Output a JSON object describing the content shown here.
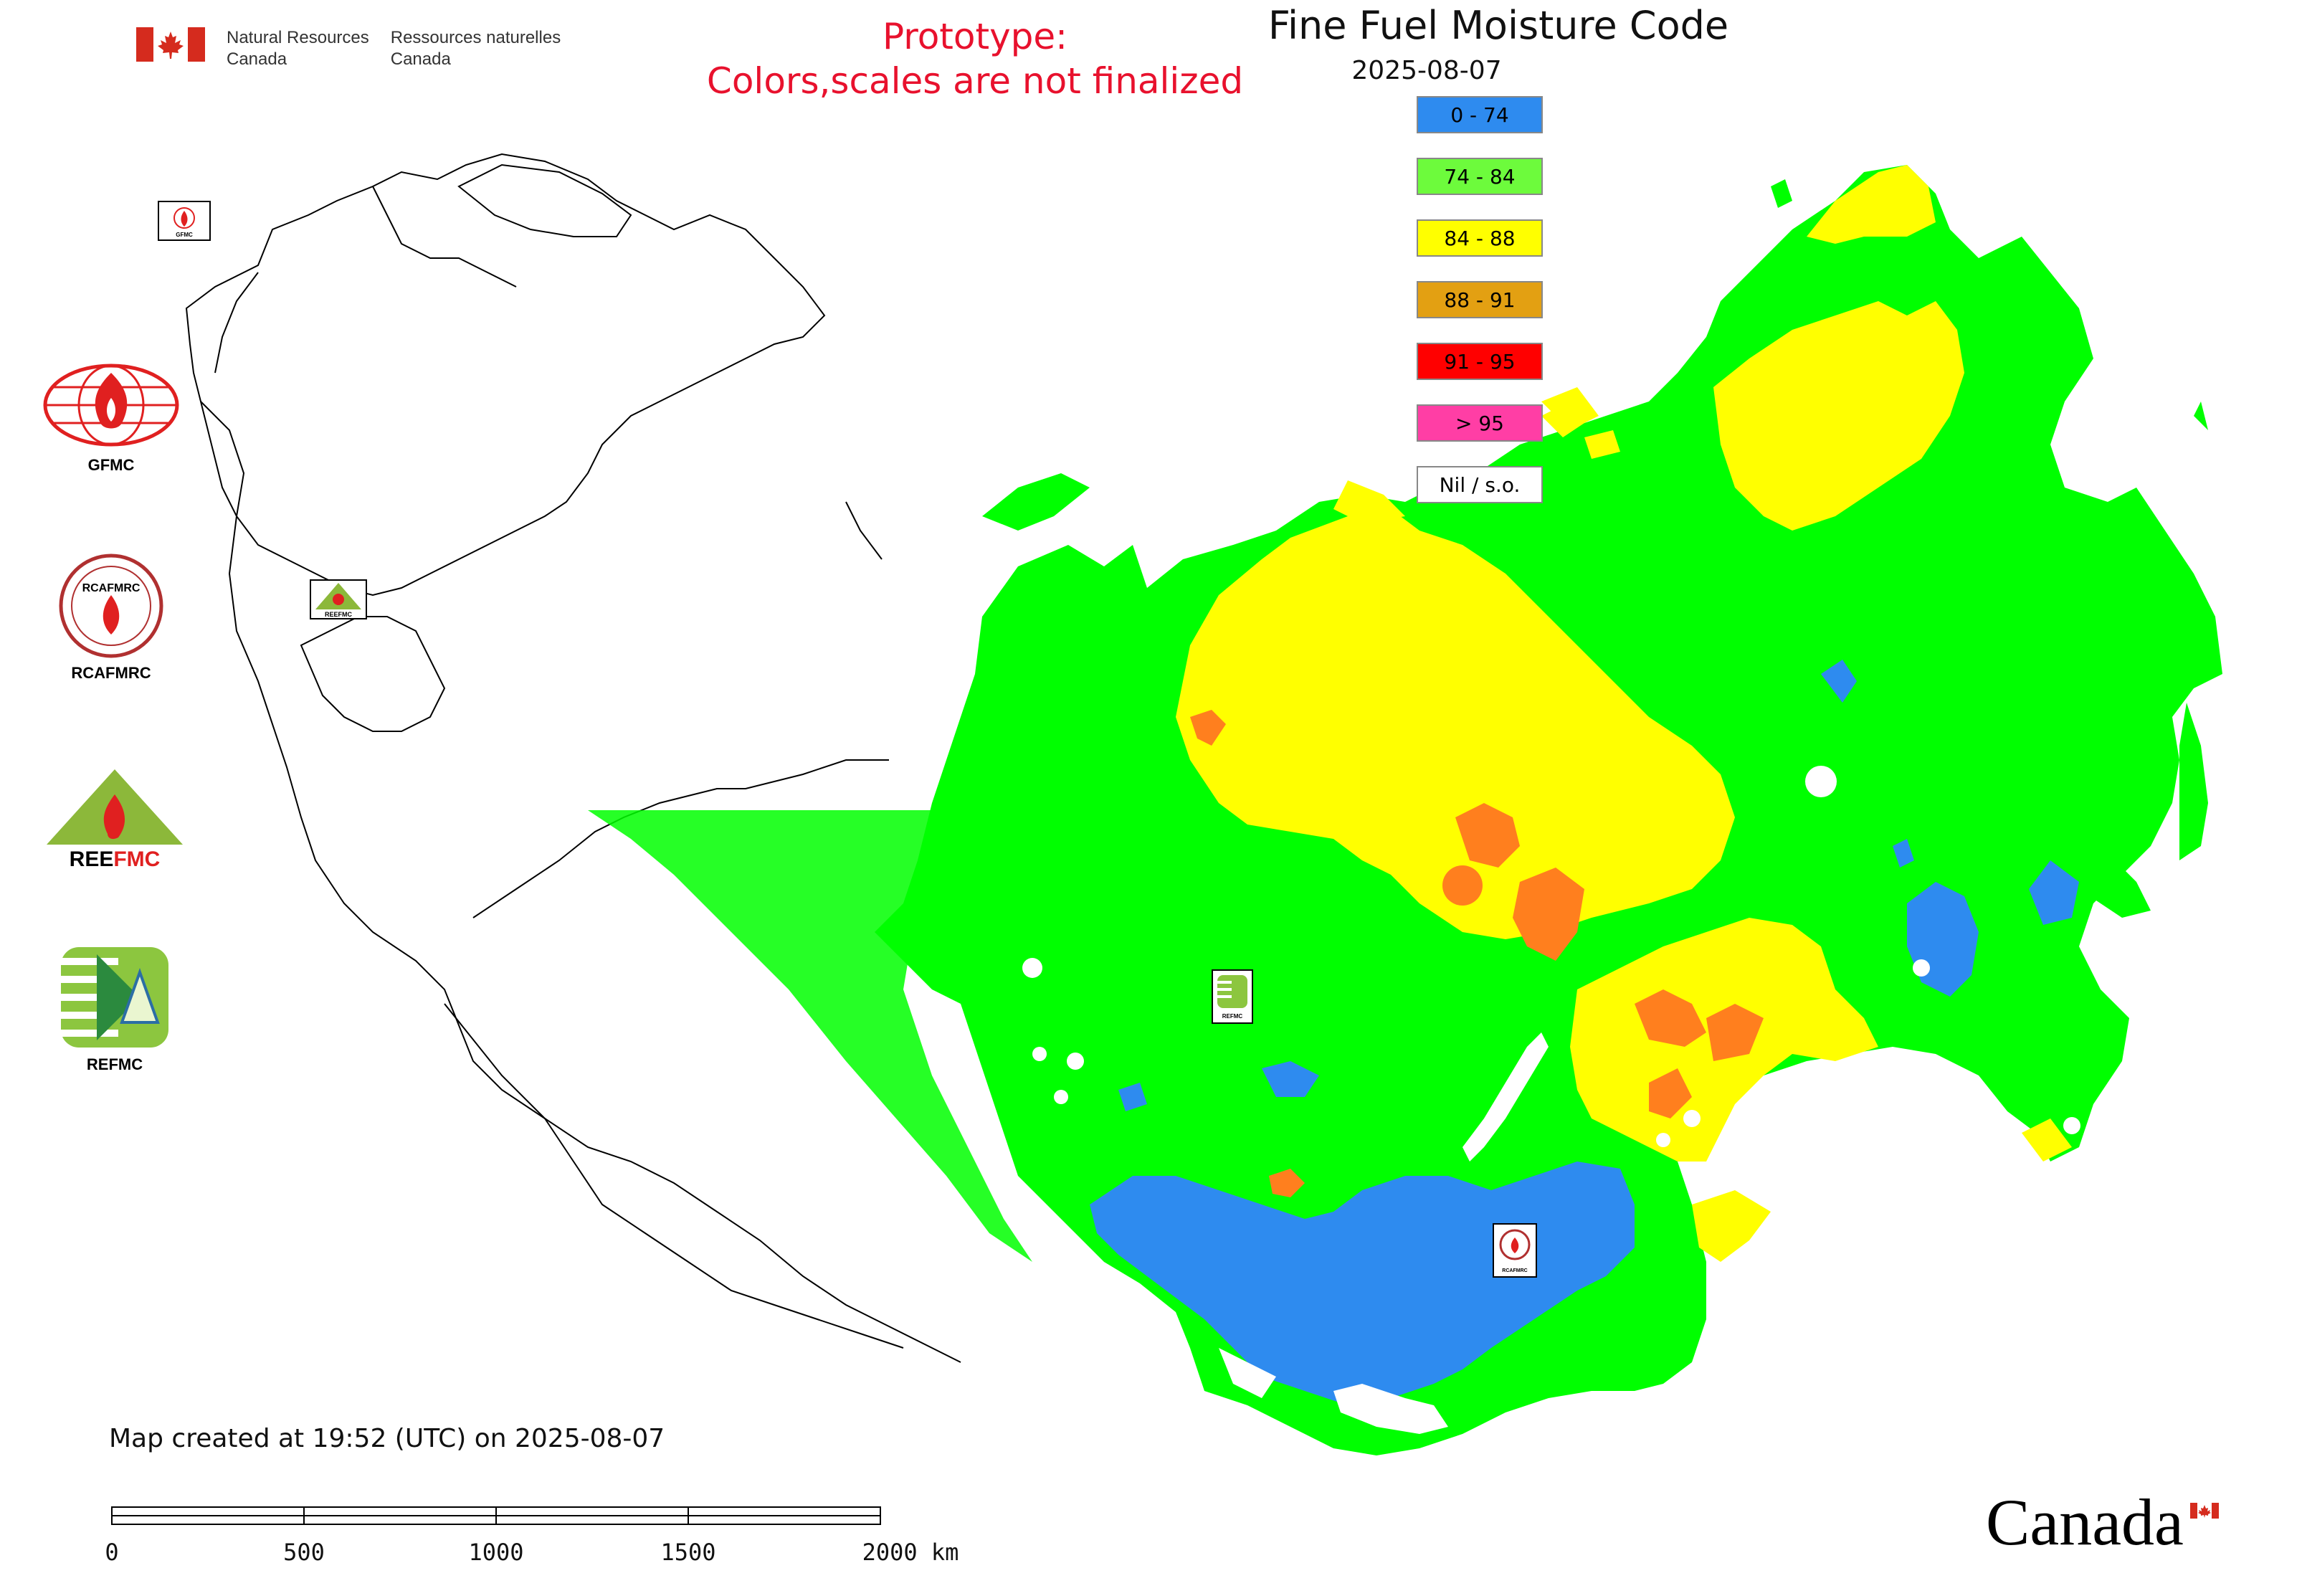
{
  "header": {
    "dept_en_line1": "Natural Resources",
    "dept_en_line2": "Canada",
    "dept_fr_line1": "Ressources naturelles",
    "dept_fr_line2": "Canada"
  },
  "prototype": {
    "line1": "Prototype:",
    "line2": "Colors,scales are not finalized"
  },
  "map": {
    "title": "Fine Fuel Moisture Code",
    "date": "2025-08-07",
    "created_note": "Map created at 19:52 (UTC) on 2025-08-07"
  },
  "legend": {
    "items": [
      {
        "label": "0 - 74",
        "color": "#2e8bef"
      },
      {
        "label": "74 - 84",
        "color": "#6dfb3c"
      },
      {
        "label": "84 - 88",
        "color": "#ffff00"
      },
      {
        "label": "88 - 91",
        "color": "#e3a012"
      },
      {
        "label": "91 - 95",
        "color": "#ff0000"
      },
      {
        "label": "> 95",
        "color": "#ff3ea5"
      },
      {
        "label": "Nil / s.o.",
        "color": "#ffffff"
      }
    ]
  },
  "logos": {
    "gfmc": "GFMC",
    "rcafmrc": "RCAFMRC",
    "reefmc": "REEFMC",
    "refmc": "REFMC"
  },
  "map_markers": {
    "gfmc_small": "GFMC",
    "reefmc_small": "REEFMC",
    "refmc_small": "REFMC",
    "rcafmrc_small": "RCAFMRC"
  },
  "scale_bar": {
    "labels": [
      "0",
      "500",
      "1000",
      "1500",
      "2000 km"
    ]
  },
  "footer": {
    "wordmark": "Canada"
  },
  "colors": {
    "green": "#00ff00",
    "yellow": "#ffff00",
    "orange": "#ff7f1e",
    "blue": "#2e8bef",
    "pink": "#ff3ea5"
  }
}
